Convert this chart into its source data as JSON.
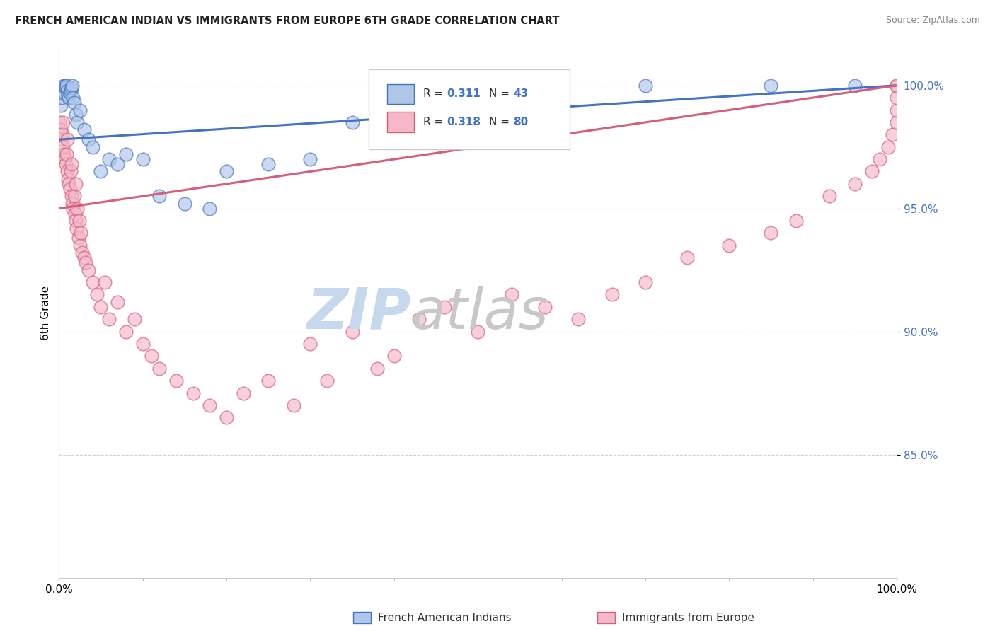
{
  "title": "FRENCH AMERICAN INDIAN VS IMMIGRANTS FROM EUROPE 6TH GRADE CORRELATION CHART",
  "source": "Source: ZipAtlas.com",
  "ylabel": "6th Grade",
  "legend_blue_r": "0.311",
  "legend_blue_n": "43",
  "legend_pink_r": "0.318",
  "legend_pink_n": "80",
  "legend_blue_label": "French American Indians",
  "legend_pink_label": "Immigrants from Europe",
  "blue_fill": "#aec6e8",
  "blue_edge": "#4472c4",
  "pink_fill": "#f4b8c8",
  "pink_edge": "#d45f7a",
  "blue_line": "#4472c4",
  "pink_line": "#d45f7a",
  "r_n_color": "#4472c4",
  "ytick_color": "#4472c4",
  "watermark_zip_color": "#c5d8ee",
  "watermark_atlas_color": "#c8c8c8",
  "xlim": [
    0,
    100
  ],
  "ylim": [
    80,
    101.5
  ],
  "yticks": [
    85.0,
    90.0,
    95.0,
    100.0
  ],
  "ytick_labels": [
    "85.0%",
    "90.0%",
    "95.0%",
    "100.0%"
  ],
  "blue_x": [
    0.2,
    0.3,
    0.4,
    0.5,
    0.6,
    0.7,
    0.8,
    0.9,
    1.0,
    1.1,
    1.2,
    1.3,
    1.4,
    1.5,
    1.6,
    1.7,
    1.8,
    2.0,
    2.2,
    2.5,
    3.0,
    3.5,
    4.0,
    5.0,
    6.0,
    7.0,
    8.0,
    10.0,
    12.0,
    15.0,
    18.0,
    20.0,
    25.0,
    30.0,
    35.0,
    40.0,
    45.0,
    50.0,
    55.0,
    60.0,
    70.0,
    85.0,
    95.0
  ],
  "blue_y": [
    99.2,
    99.5,
    99.8,
    99.7,
    100.0,
    100.0,
    99.9,
    100.0,
    99.8,
    99.6,
    99.5,
    99.7,
    99.8,
    99.9,
    100.0,
    99.5,
    99.3,
    98.8,
    98.5,
    99.0,
    98.2,
    97.8,
    97.5,
    96.5,
    97.0,
    96.8,
    97.2,
    97.0,
    95.5,
    95.2,
    95.0,
    96.5,
    96.8,
    97.0,
    98.5,
    98.2,
    99.0,
    98.8,
    99.2,
    99.5,
    100.0,
    100.0,
    100.0
  ],
  "pink_x": [
    0.1,
    0.2,
    0.3,
    0.4,
    0.5,
    0.5,
    0.6,
    0.7,
    0.8,
    0.9,
    1.0,
    1.0,
    1.1,
    1.2,
    1.3,
    1.4,
    1.5,
    1.5,
    1.6,
    1.7,
    1.8,
    1.9,
    2.0,
    2.0,
    2.1,
    2.2,
    2.3,
    2.4,
    2.5,
    2.6,
    2.8,
    3.0,
    3.2,
    3.5,
    4.0,
    4.5,
    5.0,
    5.5,
    6.0,
    7.0,
    8.0,
    9.0,
    10.0,
    11.0,
    12.0,
    14.0,
    16.0,
    18.0,
    20.0,
    22.0,
    25.0,
    28.0,
    30.0,
    32.0,
    35.0,
    38.0,
    40.0,
    43.0,
    46.0,
    50.0,
    54.0,
    58.0,
    62.0,
    66.0,
    70.0,
    75.0,
    80.0,
    85.0,
    88.0,
    92.0,
    95.0,
    97.0,
    98.0,
    99.0,
    99.5,
    100.0,
    100.0,
    100.0,
    100.0,
    100.0
  ],
  "pink_y": [
    98.5,
    98.2,
    97.8,
    98.0,
    97.5,
    98.5,
    97.2,
    97.0,
    96.8,
    97.2,
    96.5,
    97.8,
    96.2,
    96.0,
    95.8,
    96.5,
    95.5,
    96.8,
    95.2,
    95.0,
    95.5,
    94.8,
    94.5,
    96.0,
    94.2,
    95.0,
    93.8,
    94.5,
    93.5,
    94.0,
    93.2,
    93.0,
    92.8,
    92.5,
    92.0,
    91.5,
    91.0,
    92.0,
    90.5,
    91.2,
    90.0,
    90.5,
    89.5,
    89.0,
    88.5,
    88.0,
    87.5,
    87.0,
    86.5,
    87.5,
    88.0,
    87.0,
    89.5,
    88.0,
    90.0,
    88.5,
    89.0,
    90.5,
    91.0,
    90.0,
    91.5,
    91.0,
    90.5,
    91.5,
    92.0,
    93.0,
    93.5,
    94.0,
    94.5,
    95.5,
    96.0,
    96.5,
    97.0,
    97.5,
    98.0,
    98.5,
    99.0,
    99.5,
    100.0,
    100.0
  ],
  "blue_trend_start_y": 97.8,
  "blue_trend_end_y": 100.0,
  "pink_trend_start_y": 95.0,
  "pink_trend_end_y": 100.0
}
